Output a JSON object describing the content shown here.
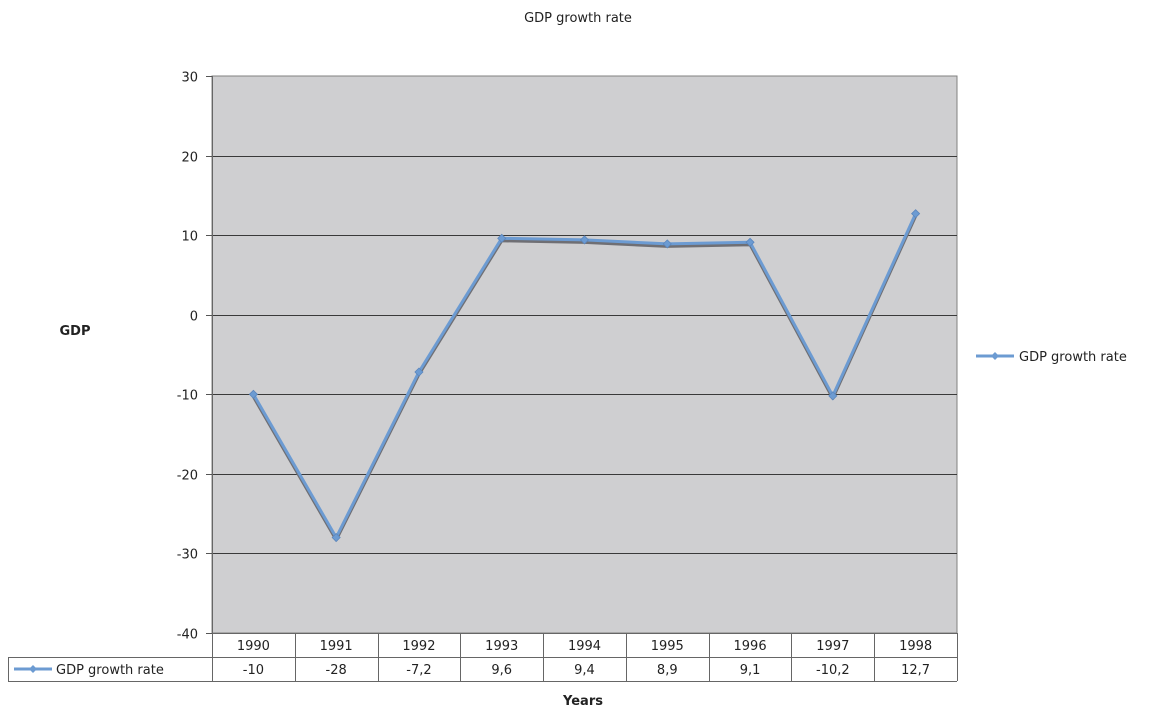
{
  "chart_data": {
    "type": "line",
    "title": "GDP growth rate",
    "xlabel": "Years",
    "ylabel": "GDP",
    "categories": [
      "1990",
      "1991",
      "1992",
      "1993",
      "1994",
      "1995",
      "1996",
      "1997",
      "1998"
    ],
    "series": [
      {
        "name": "GDP growth rate",
        "values": [
          -10,
          -28,
          -7.2,
          9.6,
          9.4,
          8.9,
          9.1,
          -10.2,
          12.7
        ],
        "value_labels": [
          "-10",
          "-28",
          "-7,2",
          "9,6",
          "9,4",
          "8,9",
          "9,1",
          "-10,2",
          "12,7"
        ],
        "color": "#6c9bd2"
      }
    ],
    "ylim": [
      -40,
      30
    ],
    "yticks": [
      30,
      20,
      10,
      0,
      -10,
      -20,
      -30,
      -40
    ],
    "grid": true,
    "legend": "right",
    "data_table": true,
    "plot_background": "#cfcfd1"
  }
}
